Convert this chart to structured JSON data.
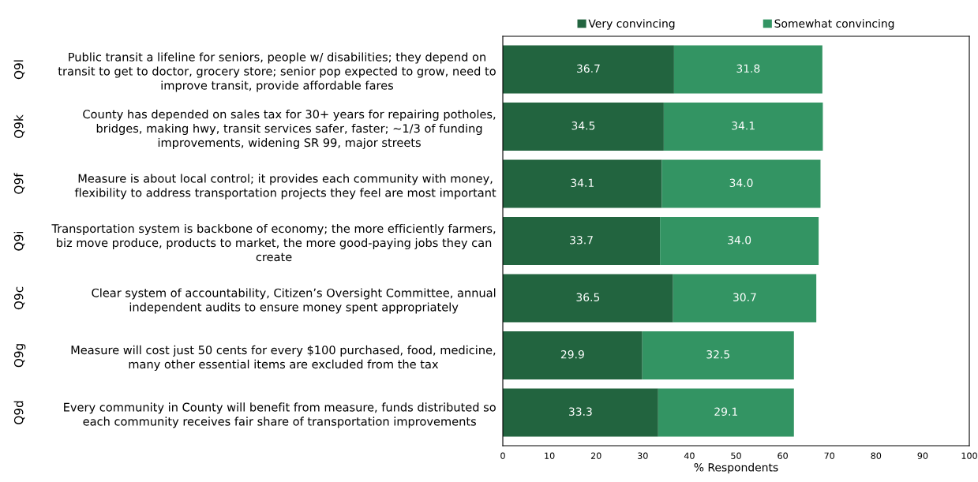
{
  "chart_data": {
    "type": "bar",
    "orientation": "horizontal",
    "stacked": true,
    "categories": [
      "Public transit a lifeline for seniors, people w/ disabilities; they depend on\ntransit to get to doctor, grocery store; senior pop expected to grow, need to\nimprove transit, provide affordable fares",
      "County has depended on sales tax for 30+ years for repairing potholes,\nbridges, making hwy, transit services safer, faster; ~1/3 of funding\nimprovements, widening SR 99, major streets",
      "Measure is about local control; it provides each community with money,\nflexibility to address transportation projects they feel are most important",
      "Transportation system is backbone of economy; the more efficiently farmers,\nbiz move produce, products to market, the more good-paying jobs they can\ncreate",
      "Clear system of accountability, Citizen’s Oversight Committee, annual\nindependent audits to ensure money spent appropriately",
      "Measure will cost just 50 cents for every $100 purchased, food, medicine,\nmany other essential items are excluded from the tax",
      "Every community in County will benefit from measure, funds distributed so\neach community receives fair share of transportation improvements"
    ],
    "series": [
      {
        "name": "Very convincing",
        "color": "#22643f",
        "values": [
          36.7,
          34.5,
          34.1,
          33.7,
          36.5,
          29.9,
          33.3
        ]
      },
      {
        "name": "Somewhat convincing",
        "color": "#339463",
        "values": [
          31.8,
          34.1,
          34.0,
          34.0,
          30.7,
          32.5,
          29.1
        ],
        "value_labels": [
          "31.8",
          "34.1",
          "34.0",
          "34.0",
          "30.7",
          "32.5",
          "29.1"
        ]
      }
    ],
    "data_labels": true,
    "xlim": [
      0,
      100
    ],
    "xticks": [
      0,
      10,
      20,
      30,
      40,
      50,
      60,
      70,
      80,
      90,
      100
    ],
    "xlabel": "% Respondents",
    "legend": "top",
    "grid": false,
    "annotations": [
      "Q9l",
      "Q9k",
      "Q9f",
      "Q9i",
      "Q9c",
      "Q9g",
      "Q9d"
    ]
  }
}
